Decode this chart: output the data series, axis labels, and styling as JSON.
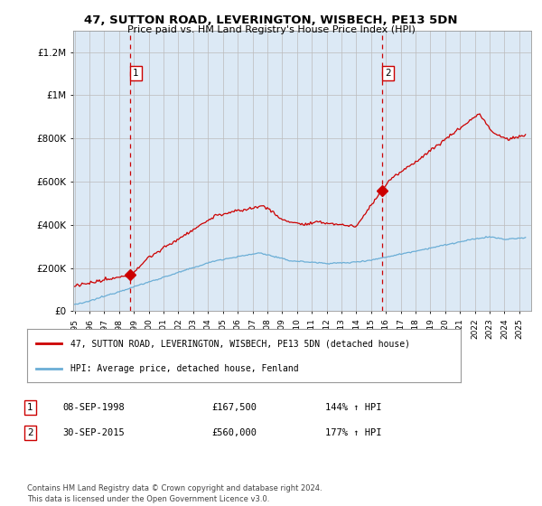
{
  "title": "47, SUTTON ROAD, LEVERINGTON, WISBECH, PE13 5DN",
  "subtitle": "Price paid vs. HM Land Registry's House Price Index (HPI)",
  "bg_color": "#dce9f5",
  "fig_bg_color": "#ffffff",
  "hpi_line_color": "#6baed6",
  "price_line_color": "#cc0000",
  "marker_color": "#cc0000",
  "dashed_line_color": "#cc0000",
  "ylim": [
    0,
    1300000
  ],
  "yticks": [
    0,
    200000,
    400000,
    600000,
    800000,
    1000000,
    1200000
  ],
  "ytick_labels": [
    "£0",
    "£200K",
    "£400K",
    "£600K",
    "£800K",
    "£1M",
    "£1.2M"
  ],
  "xstart": 1995,
  "xend": 2025,
  "purchase1_year": 1998.75,
  "purchase1_price": 167500,
  "purchase1_label": "1",
  "purchase2_year": 2015.75,
  "purchase2_price": 560000,
  "purchase2_label": "2",
  "legend_red_label": "47, SUTTON ROAD, LEVERINGTON, WISBECH, PE13 5DN (detached house)",
  "legend_blue_label": "HPI: Average price, detached house, Fenland",
  "ann1_date": "08-SEP-1998",
  "ann1_price": "£167,500",
  "ann1_hpi": "144% ↑ HPI",
  "ann2_date": "30-SEP-2015",
  "ann2_price": "£560,000",
  "ann2_hpi": "177% ↑ HPI",
  "footer": "Contains HM Land Registry data © Crown copyright and database right 2024.\nThis data is licensed under the Open Government Licence v3.0."
}
